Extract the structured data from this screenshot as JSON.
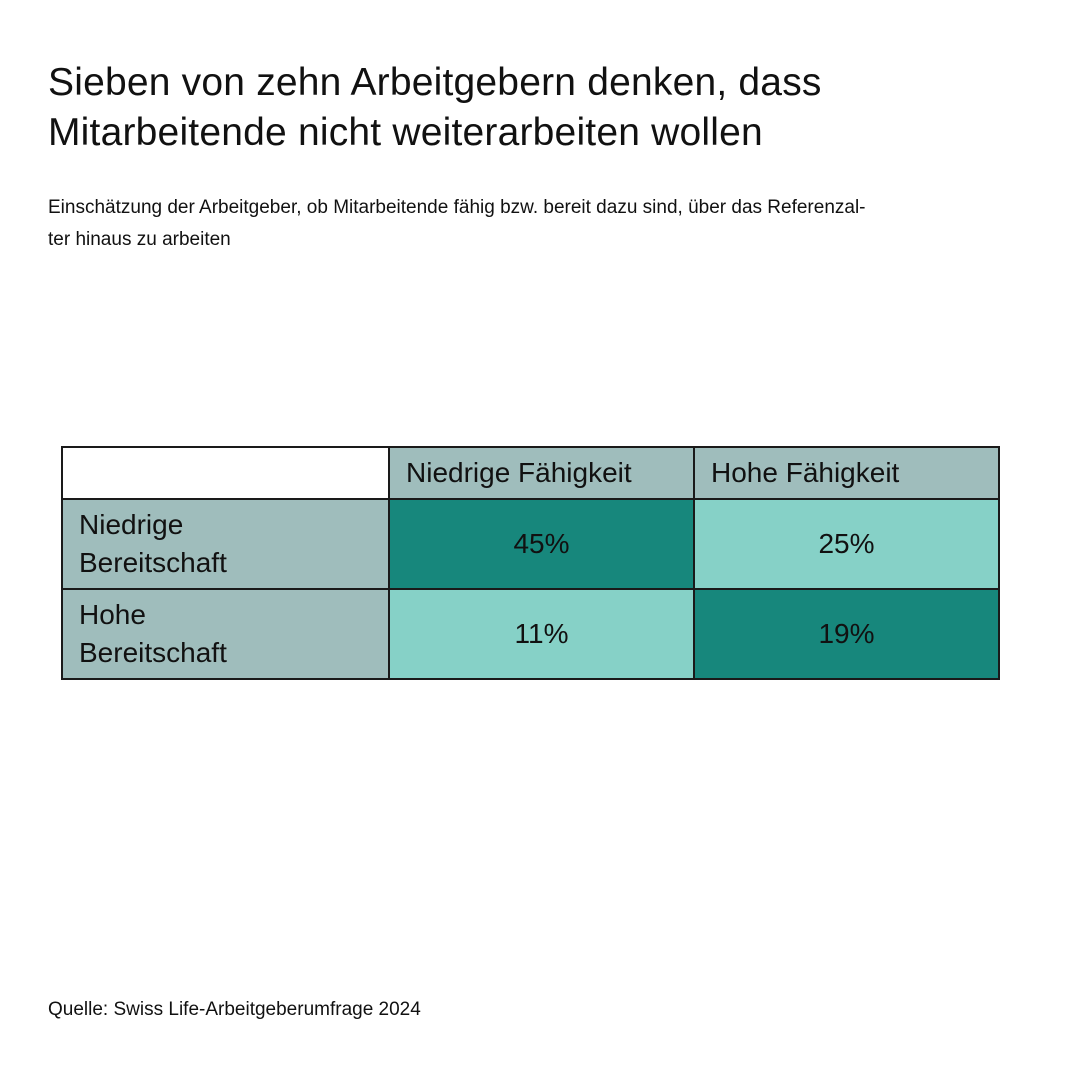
{
  "title_line1": "Sieben von zehn Arbeitgebern denken, dass",
  "title_line2": "Mitarbeitende nicht weiterarbeiten wollen",
  "subtitle_line1": "Einschätzung der Arbeitgeber, ob Mitarbeitende fähig bzw. bereit dazu sind, über das Referenzal-",
  "subtitle_line2": "ter hinaus zu arbeiten",
  "source": "Quelle: Swiss Life-Arbeitgeberumfrage 2024",
  "colors": {
    "header_bg": "#9fbdbc",
    "high_share": "#17877c",
    "low_share": "#86d1c7",
    "border": "#1a1a1a"
  },
  "chart_data": {
    "type": "table",
    "columns": [
      "Niedrige Fähigkeit",
      "Hohe Fähigkeit"
    ],
    "rows": [
      {
        "label_line1": "Niedrige",
        "label_line2": "Bereitschaft",
        "values": [
          45,
          25
        ],
        "labels": [
          "45%",
          "25%"
        ],
        "shades": [
          "high",
          "low"
        ]
      },
      {
        "label_line1": "Hohe",
        "label_line2": "Bereitschaft",
        "values": [
          11,
          19
        ],
        "labels": [
          "11%",
          "19%"
        ],
        "shades": [
          "low",
          "high"
        ]
      }
    ],
    "unit": "%"
  }
}
